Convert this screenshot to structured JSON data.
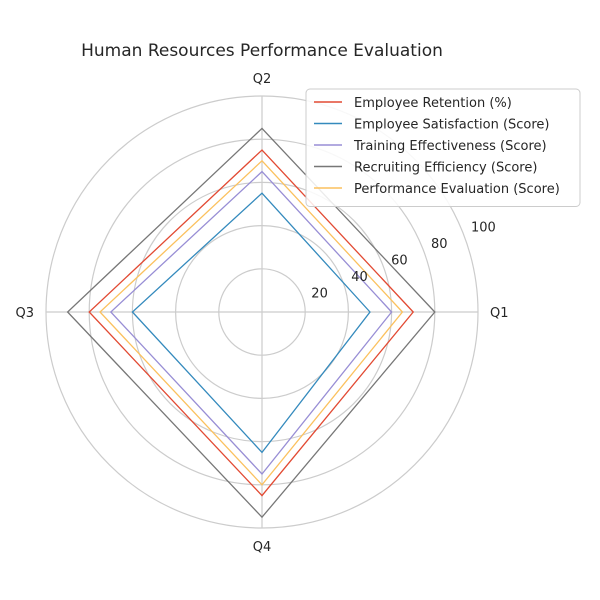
{
  "chart_data": {
    "type": "radar",
    "title": "Human Resources Performance Evaluation",
    "categories": [
      "Q1",
      "Q2",
      "Q3",
      "Q4"
    ],
    "rlim": [
      0,
      100
    ],
    "r_ticks": [
      20,
      40,
      60,
      80,
      100
    ],
    "grid": true,
    "legend_position": "top-right",
    "series": [
      {
        "name": "Employee Retention (%)",
        "color": "#e24a33",
        "values": [
          70,
          75,
          80,
          85
        ]
      },
      {
        "name": "Employee Satisfaction (Score)",
        "color": "#348abd",
        "values": [
          50,
          55,
          60,
          65
        ]
      },
      {
        "name": "Training Effectiveness (Score)",
        "color": "#988ed5",
        "values": [
          60,
          65,
          70,
          75
        ]
      },
      {
        "name": "Recruiting Efficiency (Score)",
        "color": "#777777",
        "values": [
          80,
          85,
          90,
          95
        ]
      },
      {
        "name": "Performance Evaluation (Score)",
        "color": "#fbc15e",
        "values": [
          65,
          70,
          75,
          80
        ]
      }
    ]
  }
}
